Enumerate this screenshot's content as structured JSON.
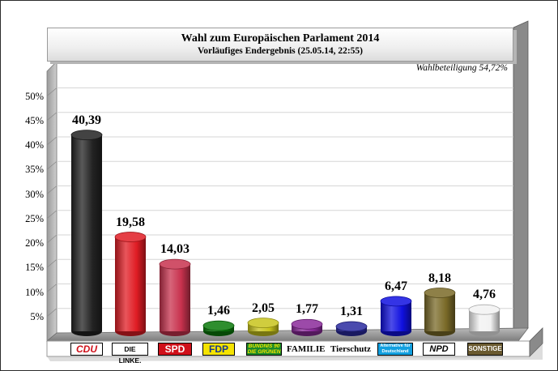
{
  "chart_data": {
    "type": "bar",
    "title": "Wahl zum Europäischen Parlament 2014",
    "subtitle": "Vorläufiges Endergebnis (25.05.14, 22:55)",
    "annotation": "Wahlbeteiligung 54,72%",
    "categories": [
      "CDU",
      "DIE LINKE.",
      "SPD",
      "FDP",
      "BÜNDNIS 90 DIE GRÜNEN",
      "FAMILIE",
      "Tierschutz",
      "Alternative für Deutschland",
      "NPD",
      "SONSTIGE"
    ],
    "values": [
      40.39,
      19.58,
      14.03,
      1.46,
      2.05,
      1.77,
      1.31,
      6.47,
      8.18,
      4.76
    ],
    "value_labels": [
      "40,39",
      "19,58",
      "14,03",
      "1,46",
      "2,05",
      "1,77",
      "1,31",
      "6,47",
      "8,18",
      "4,76"
    ],
    "colors": [
      "#222222",
      "#e01c24",
      "#c8324e",
      "#0a7a0a",
      "#c8c41c",
      "#8a2a9a",
      "#2a2aa0",
      "#1010e0",
      "#7a6a28",
      "#f2f2f2"
    ],
    "yticks": [
      "5%",
      "10%",
      "15%",
      "20%",
      "25%",
      "30%",
      "35%",
      "40%",
      "45%",
      "50%"
    ],
    "ylim": [
      0,
      50
    ],
    "grid": true
  }
}
